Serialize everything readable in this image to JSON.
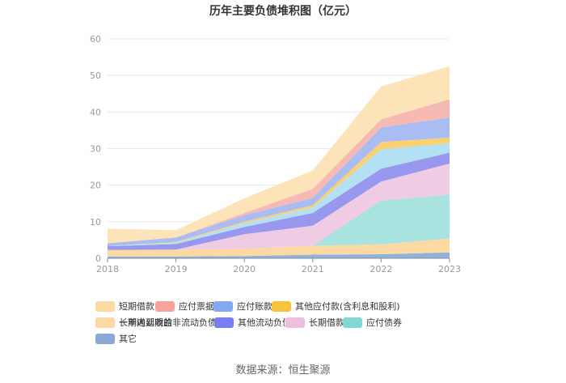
{
  "chart_data": {
    "type": "area",
    "stacked": true,
    "title": "历年主要负债堆积图（亿元）",
    "x": [
      "2018",
      "2019",
      "2020",
      "2021",
      "2022",
      "2023"
    ],
    "ylim": [
      0,
      60
    ],
    "yticks": [
      "0",
      "10",
      "20",
      "30",
      "40",
      "50",
      "60"
    ],
    "grid": true,
    "legend_position": "bottom",
    "series": [
      {
        "name": "其它",
        "color": "#8fb2db",
        "values": [
          0.5,
          0.5,
          0.6,
          1.0,
          1.1,
          1.6
        ]
      },
      {
        "name": "长期递延收益",
        "color": "#fcd9a3",
        "values": [
          1.8,
          1.9,
          2.0,
          2.4,
          2.7,
          3.8
        ]
      },
      {
        "name": "应付债券",
        "color": "#a9e3df",
        "values": [
          0,
          0,
          0,
          0,
          12.0,
          12.0
        ]
      },
      {
        "name": "长期借款",
        "color": "#f0cce4",
        "values": [
          0,
          0,
          4.0,
          5.5,
          5.2,
          8.5
        ]
      },
      {
        "name": "其他流动负债",
        "color": "#9898ee",
        "values": [
          1.0,
          1.5,
          2.0,
          3.5,
          3.5,
          3.0
        ]
      },
      {
        "name": "一年内到期的非流动负债",
        "color": "#b4e0f4",
        "values": [
          0,
          0.4,
          1.0,
          1.5,
          5.3,
          2.6
        ]
      },
      {
        "name": "其他应付款(含利息和股利)",
        "color": "#fbd073",
        "values": [
          0,
          0.2,
          0.4,
          0.6,
          2.0,
          1.5
        ]
      },
      {
        "name": "应付账款",
        "color": "#a9bdf3",
        "values": [
          0.8,
          1.2,
          1.8,
          2.0,
          4.0,
          5.5
        ]
      },
      {
        "name": "应付票据",
        "color": "#f7b9b3",
        "values": [
          0,
          0,
          0.6,
          2.5,
          2.2,
          5.0
        ]
      },
      {
        "name": "短期借款",
        "color": "#fde3b8",
        "values": [
          4.0,
          2.0,
          4.0,
          5.0,
          9.0,
          9.0
        ]
      }
    ]
  },
  "legend": [
    {
      "label": "短期借款",
      "color": "#fcd9a3"
    },
    {
      "label": "应付票据",
      "color": "#f5a39b"
    },
    {
      "label": "应付账款",
      "color": "#86a8f0"
    },
    {
      "label": "其他应付款(含利息和股利)",
      "color": "#f9c23c"
    },
    {
      "label": "一年内到期的非流动负债",
      "color": "#aee0f7"
    },
    {
      "label": "其他流动负债",
      "color": "#7b7ef0"
    },
    {
      "label": "长期借款",
      "color": "#ecc0dd"
    },
    {
      "label": "应付债券",
      "color": "#82d8d2"
    },
    {
      "label": "长期递延收益",
      "color": "#fcd9a3"
    },
    {
      "label": "其它",
      "color": "#8aa9d6"
    }
  ],
  "source": "数据来源：恒生聚源"
}
